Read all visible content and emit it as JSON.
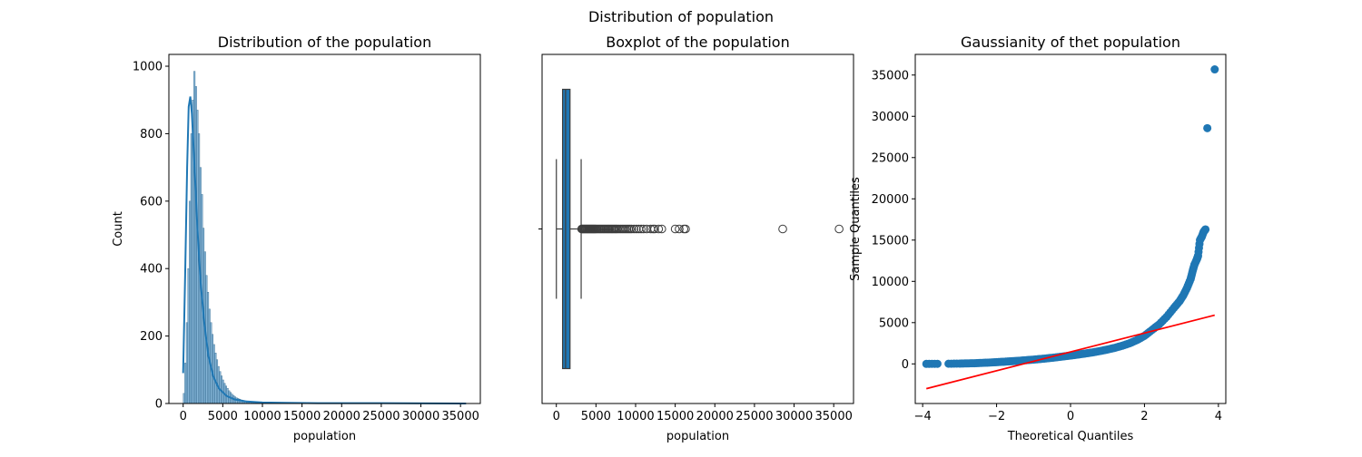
{
  "suptitle": "Distribution of population",
  "chart_data": [
    {
      "type": "histogram",
      "title": "Distribution of the population",
      "xlabel": "population",
      "ylabel": "Count",
      "xlim": [
        -1800,
        37500
      ],
      "ylim": [
        0,
        1035
      ],
      "xticks": [
        0,
        5000,
        10000,
        15000,
        20000,
        25000,
        30000,
        35000
      ],
      "xtick_labels": [
        "0",
        "5000",
        "10000",
        "15000",
        "20000",
        "25000",
        "30000",
        "35000"
      ],
      "yticks": [
        0,
        200,
        400,
        600,
        800,
        1000
      ],
      "ytick_labels": [
        "0",
        "200",
        "400",
        "600",
        "800",
        "1000"
      ],
      "bin_width": 190,
      "counts": [
        30,
        120,
        240,
        400,
        600,
        800,
        900,
        985,
        940,
        870,
        800,
        700,
        620,
        520,
        450,
        380,
        330,
        280,
        240,
        205,
        175,
        150,
        130,
        110,
        95,
        82,
        70,
        60,
        52,
        45,
        38,
        33,
        28,
        24,
        20,
        17,
        15,
        13,
        11,
        10,
        9,
        8,
        7,
        6,
        5,
        4,
        4,
        3,
        3,
        3,
        2,
        2,
        2,
        2,
        1,
        1,
        1,
        1,
        1,
        1
      ],
      "kde": [
        [
          0,
          90
        ],
        [
          250,
          380
        ],
        [
          500,
          700
        ],
        [
          700,
          880
        ],
        [
          900,
          910
        ],
        [
          1100,
          860
        ],
        [
          1400,
          720
        ],
        [
          1800,
          520
        ],
        [
          2200,
          360
        ],
        [
          2700,
          230
        ],
        [
          3200,
          140
        ],
        [
          3800,
          80
        ],
        [
          4500,
          45
        ],
        [
          5500,
          22
        ],
        [
          6500,
          12
        ],
        [
          8000,
          6
        ],
        [
          10000,
          3
        ],
        [
          13000,
          2
        ],
        [
          17000,
          1
        ],
        [
          25000,
          1
        ],
        [
          35700,
          0
        ]
      ],
      "color": "#1f77b4"
    },
    {
      "type": "boxplot",
      "title": "Boxplot of the population",
      "xlabel": "population",
      "xlim": [
        -1800,
        37500
      ],
      "xticks": [
        0,
        5000,
        10000,
        15000,
        20000,
        25000,
        30000,
        35000
      ],
      "xtick_labels": [
        "0",
        "5000",
        "10000",
        "15000",
        "20000",
        "25000",
        "30000",
        "35000"
      ],
      "whisker_low": 3,
      "q1": 787,
      "median": 1166,
      "q3": 1725,
      "whisker_high": 3132,
      "outliers": [
        3200,
        3300,
        3400,
        3500,
        3600,
        3700,
        3800,
        3900,
        4000,
        4100,
        4200,
        4300,
        4400,
        4500,
        4600,
        4700,
        4800,
        4900,
        5000,
        5150,
        5300,
        5450,
        5600,
        5750,
        5900,
        6050,
        6200,
        6350,
        6500,
        6650,
        6800,
        6950,
        7100,
        7250,
        7400,
        7550,
        7700,
        7900,
        8100,
        8300,
        8500,
        8700,
        8900,
        9100,
        9300,
        9500,
        9800,
        10100,
        10400,
        10700,
        11000,
        11400,
        11900,
        12200,
        12400,
        12900,
        13300,
        15000,
        15500,
        16100,
        16300,
        28566,
        35682
      ],
      "color": "#1f77b4"
    },
    {
      "type": "scatter",
      "title": "Gaussianity of thet  population",
      "xlabel": "Theoretical Quantiles",
      "ylabel": "Sample Quantiles",
      "xlim": [
        -4.2,
        4.2
      ],
      "ylim": [
        -4800,
        37500
      ],
      "xticks": [
        -4,
        -2,
        0,
        2,
        4
      ],
      "xtick_labels": [
        "−4",
        "−2",
        "0",
        "2",
        "4"
      ],
      "yticks": [
        0,
        5000,
        10000,
        15000,
        20000,
        25000,
        30000,
        35000
      ],
      "ytick_labels": [
        "0",
        "5000",
        "10000",
        "15000",
        "20000",
        "25000",
        "30000",
        "35000"
      ],
      "points": [
        [
          -3.9,
          3
        ],
        [
          -3.6,
          10
        ],
        [
          -3.3,
          20
        ],
        [
          -3.0,
          40
        ],
        [
          -2.8,
          60
        ],
        [
          -2.6,
          80
        ],
        [
          -2.4,
          120
        ],
        [
          -2.2,
          160
        ],
        [
          -2.0,
          210
        ],
        [
          -1.8,
          260
        ],
        [
          -1.6,
          320
        ],
        [
          -1.4,
          380
        ],
        [
          -1.2,
          450
        ],
        [
          -1.0,
          520
        ],
        [
          -0.8,
          600
        ],
        [
          -0.6,
          690
        ],
        [
          -0.4,
          790
        ],
        [
          -0.2,
          900
        ],
        [
          0.0,
          1010
        ],
        [
          0.2,
          1130
        ],
        [
          0.4,
          1260
        ],
        [
          0.6,
          1400
        ],
        [
          0.8,
          1560
        ],
        [
          1.0,
          1740
        ],
        [
          1.2,
          1950
        ],
        [
          1.4,
          2200
        ],
        [
          1.6,
          2500
        ],
        [
          1.8,
          2900
        ],
        [
          2.0,
          3400
        ],
        [
          2.2,
          4100
        ],
        [
          2.4,
          4800
        ],
        [
          2.6,
          5700
        ],
        [
          2.8,
          6800
        ],
        [
          2.95,
          7600
        ],
        [
          3.05,
          8300
        ],
        [
          3.15,
          9200
        ],
        [
          3.25,
          10300
        ],
        [
          3.3,
          11200
        ],
        [
          3.35,
          12000
        ],
        [
          3.42,
          12700
        ],
        [
          3.45,
          13100
        ],
        [
          3.5,
          15000
        ],
        [
          3.55,
          15400
        ],
        [
          3.6,
          16000
        ],
        [
          3.65,
          16300
        ],
        [
          3.7,
          28566
        ],
        [
          3.9,
          35682
        ]
      ],
      "line": [
        [
          -3.9,
          -3000
        ],
        [
          3.9,
          5900
        ]
      ],
      "point_color": "#1f77b4",
      "line_color": "#ff0000"
    }
  ]
}
